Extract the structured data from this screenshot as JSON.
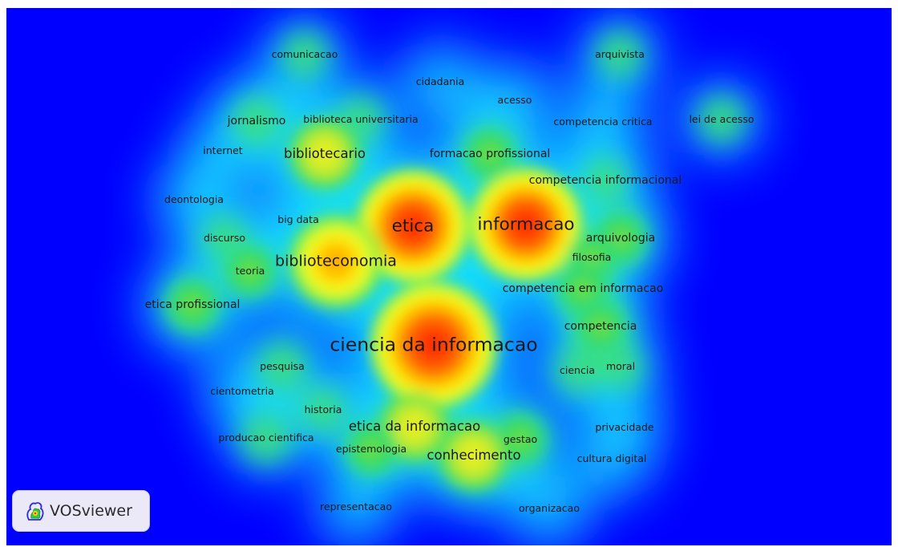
{
  "app": {
    "logo_text": "VOSviewer"
  },
  "colors": {
    "background": "#0000ff",
    "low_density": "#00ffff",
    "mid_density": "#39e639",
    "high_density": "#ffff00",
    "peak_density": "#ff0000"
  },
  "terms": [
    {
      "id": "comunicacao",
      "label": "comunicacao",
      "weight": 1,
      "density": 0.3
    },
    {
      "id": "arquivista",
      "label": "arquivista",
      "weight": 1,
      "density": 0.3
    },
    {
      "id": "cidadania",
      "label": "cidadania",
      "weight": 1,
      "density": 0.25
    },
    {
      "id": "acesso",
      "label": "acesso",
      "weight": 1,
      "density": 0.25
    },
    {
      "id": "jornalismo",
      "label": "jornalismo",
      "weight": 2,
      "density": 0.35
    },
    {
      "id": "biblioteca-universitaria",
      "label": "biblioteca universitaria",
      "weight": 1,
      "density": 0.3
    },
    {
      "id": "competencia-critica",
      "label": "competencia critica",
      "weight": 1,
      "density": 0.25
    },
    {
      "id": "lei-de-acesso",
      "label": "lei de acesso",
      "weight": 1,
      "density": 0.3
    },
    {
      "id": "internet",
      "label": "internet",
      "weight": 1,
      "density": 0.25
    },
    {
      "id": "bibliotecario",
      "label": "bibliotecario",
      "weight": 3,
      "density": 0.6
    },
    {
      "id": "formacao-profissional",
      "label": "formacao profissional",
      "weight": 2,
      "density": 0.45
    },
    {
      "id": "competencia-informacional",
      "label": "competencia informacional",
      "weight": 2,
      "density": 0.3
    },
    {
      "id": "deontologia",
      "label": "deontologia",
      "weight": 1,
      "density": 0.25
    },
    {
      "id": "big-data",
      "label": "big data",
      "weight": 1,
      "density": 0.25
    },
    {
      "id": "etica",
      "label": "etica",
      "weight": 5,
      "density": 1.0
    },
    {
      "id": "informacao",
      "label": "informacao",
      "weight": 5,
      "density": 1.0
    },
    {
      "id": "discurso",
      "label": "discurso",
      "weight": 1,
      "density": 0.3
    },
    {
      "id": "arquivologia",
      "label": "arquivologia",
      "weight": 2,
      "density": 0.45
    },
    {
      "id": "filosofia",
      "label": "filosofia",
      "weight": 1,
      "density": 0.4
    },
    {
      "id": "teoria",
      "label": "teoria",
      "weight": 1,
      "density": 0.4
    },
    {
      "id": "biblioteconomia",
      "label": "biblioteconomia",
      "weight": 4,
      "density": 0.85
    },
    {
      "id": "competencia-em-informacao",
      "label": "competencia em informacao",
      "weight": 2,
      "density": 0.45
    },
    {
      "id": "etica-profissional",
      "label": "etica profissional",
      "weight": 2,
      "density": 0.45
    },
    {
      "id": "competencia",
      "label": "competencia",
      "weight": 2,
      "density": 0.5
    },
    {
      "id": "ciencia-da-informacao",
      "label": "ciencia da informacao",
      "weight": 6,
      "density": 1.0
    },
    {
      "id": "pesquisa",
      "label": "pesquisa",
      "weight": 1,
      "density": 0.35
    },
    {
      "id": "ciencia",
      "label": "ciencia",
      "weight": 1,
      "density": 0.3
    },
    {
      "id": "moral",
      "label": "moral",
      "weight": 1,
      "density": 0.3
    },
    {
      "id": "cientometria",
      "label": "cientometria",
      "weight": 1,
      "density": 0.25
    },
    {
      "id": "historia",
      "label": "historia",
      "weight": 1,
      "density": 0.3
    },
    {
      "id": "etica-da-informacao",
      "label": "etica da informacao",
      "weight": 3,
      "density": 0.65
    },
    {
      "id": "privacidade",
      "label": "privacidade",
      "weight": 1,
      "density": 0.25
    },
    {
      "id": "producao-cientifica",
      "label": "producao cientifica",
      "weight": 1,
      "density": 0.35
    },
    {
      "id": "epistemologia",
      "label": "epistemologia",
      "weight": 1,
      "density": 0.4
    },
    {
      "id": "gestao",
      "label": "gestao",
      "weight": 1,
      "density": 0.45
    },
    {
      "id": "conhecimento",
      "label": "conhecimento",
      "weight": 3,
      "density": 0.65
    },
    {
      "id": "cultura-digital",
      "label": "cultura digital",
      "weight": 1,
      "density": 0.25
    },
    {
      "id": "representacao",
      "label": "representacao",
      "weight": 1,
      "density": 0.25
    },
    {
      "id": "organizacao",
      "label": "organizacao",
      "weight": 1,
      "density": 0.25
    }
  ]
}
